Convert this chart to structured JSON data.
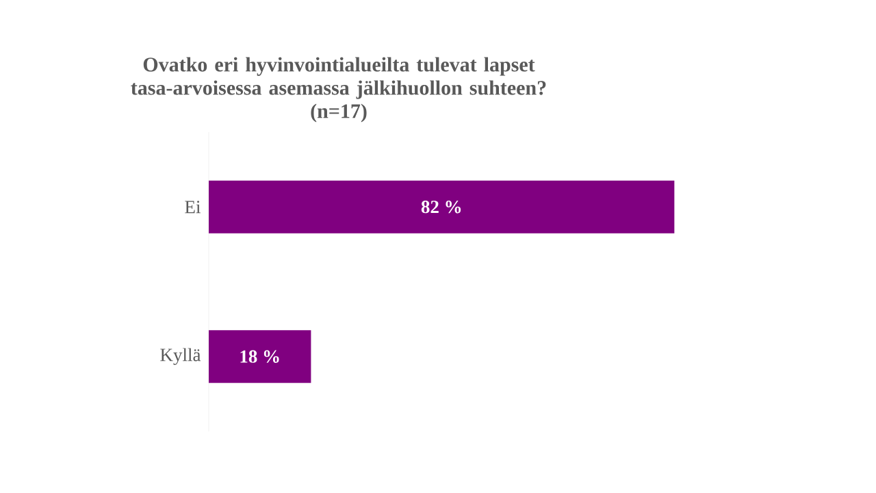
{
  "chart_data": {
    "type": "bar",
    "orientation": "horizontal",
    "title": "Ovatko eri hyvinvointialueilta tulevat lapset tasa-arvoisessa asemassa jälkihuollon suhteen?",
    "subtitle": "(n=17)",
    "categories": [
      "Ei",
      "Kyllä"
    ],
    "values": [
      82,
      18
    ],
    "value_labels": [
      "82 %",
      "18 %"
    ],
    "color": "#800080",
    "tick_labels": "y"
  }
}
